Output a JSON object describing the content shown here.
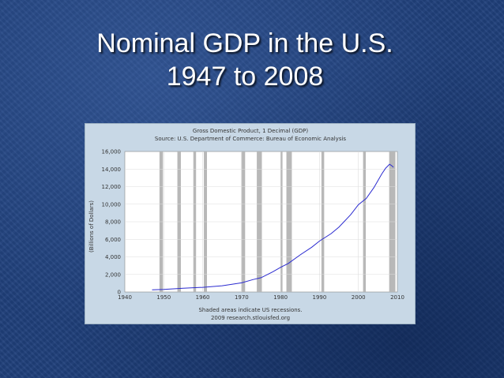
{
  "slide": {
    "title_line1": "Nominal GDP in the U.S.",
    "title_line2": "1947 to 2008"
  },
  "chart_data": {
    "type": "line",
    "title": "Gross Domestic Product, 1 Decimal (GDP)",
    "subtitle": "Source: U.S. Department of Commerce: Bureau of Economic Analysis",
    "xlabel": "",
    "ylabel": "(Billions of Dollars)",
    "xlim": [
      1940,
      2010
    ],
    "ylim": [
      0,
      16000
    ],
    "x_ticks": [
      "1940",
      "1950",
      "1960",
      "1970",
      "1980",
      "1990",
      "2000",
      "2010"
    ],
    "y_ticks": [
      "0",
      "2,000",
      "4,000",
      "6,000",
      "8,000",
      "10,000",
      "12,000",
      "14,000",
      "16,000"
    ],
    "footnote_line1": "Shaded areas indicate US recessions.",
    "footnote_line2": "2009 research.stlouisfed.org",
    "grid": true,
    "series": [
      {
        "color": "#2b2bd0",
        "x": [
          1947,
          1950,
          1955,
          1960,
          1965,
          1970,
          1973,
          1975,
          1978,
          1980,
          1982,
          1985,
          1988,
          1990,
          1993,
          1995,
          1998,
          2000,
          2002,
          2004,
          2006,
          2007,
          2008,
          2008.5,
          2009
        ],
        "values": [
          240,
          290,
          420,
          530,
          710,
          1040,
          1420,
          1630,
          2300,
          2800,
          3250,
          4220,
          5100,
          5800,
          6650,
          7400,
          8800,
          9950,
          10650,
          11900,
          13450,
          14100,
          14550,
          14400,
          14200
        ]
      }
    ],
    "recessions": [
      [
        1948.9,
        1949.8
      ],
      [
        1953.5,
        1954.4
      ],
      [
        1957.6,
        1958.3
      ],
      [
        1960.3,
        1961.1
      ],
      [
        1969.9,
        1970.9
      ],
      [
        1973.9,
        1975.2
      ],
      [
        1980.0,
        1980.5
      ],
      [
        1981.5,
        1982.9
      ],
      [
        1990.5,
        1991.2
      ],
      [
        2001.2,
        2001.9
      ],
      [
        2007.9,
        2009.5
      ]
    ],
    "recession_color": "#b8b8b8"
  }
}
